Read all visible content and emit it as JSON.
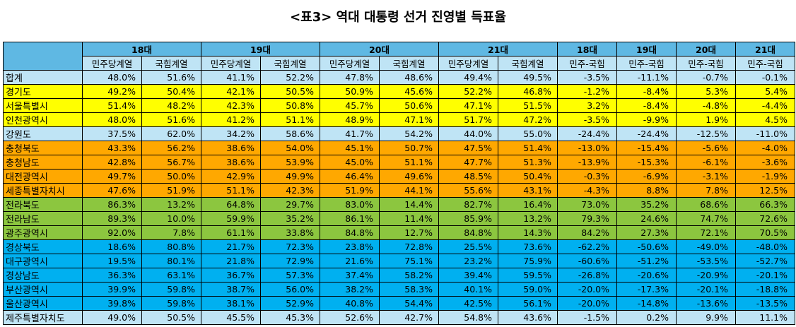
{
  "title": "<표3> 역대 대통령 선거 진영별 득표율",
  "colors": {
    "header": "#5fb8e3",
    "subheader": "#bfe4f5",
    "sudo": "#ffff00",
    "chungcheong": "#ffa800",
    "honam": "#8cc63f",
    "yeongnam": "#00b0f0",
    "other": "#bfe4f5"
  },
  "eras": [
    "18대",
    "19대",
    "20대",
    "21대"
  ],
  "diff_eras": [
    "18대",
    "19대",
    "20대",
    "21대"
  ],
  "sub_labels": [
    "민주당계열",
    "국힘계열"
  ],
  "diff_label": "민주-국힘",
  "rows": [
    {
      "group": "total",
      "name": "합계",
      "values": [
        "48.0%",
        "51.6%",
        "41.1%",
        "52.2%",
        "47.8%",
        "48.6%",
        "49.4%",
        "49.5%"
      ],
      "diffs": [
        "-3.5%",
        "-11.1%",
        "-0.7%",
        "-0.1%"
      ]
    },
    {
      "group": "sudo",
      "name": "경기도",
      "values": [
        "49.2%",
        "50.4%",
        "42.1%",
        "50.5%",
        "50.9%",
        "45.6%",
        "52.2%",
        "46.8%"
      ],
      "diffs": [
        "-1.2%",
        "-8.4%",
        "5.3%",
        "5.4%"
      ]
    },
    {
      "group": "sudo",
      "name": "서울특별시",
      "values": [
        "51.4%",
        "48.2%",
        "42.3%",
        "50.8%",
        "45.7%",
        "50.6%",
        "47.1%",
        "51.5%"
      ],
      "diffs": [
        "3.2%",
        "-8.4%",
        "-4.8%",
        "-4.4%"
      ]
    },
    {
      "group": "sudo",
      "name": "인천광역시",
      "values": [
        "48.0%",
        "51.6%",
        "41.2%",
        "51.1%",
        "48.9%",
        "47.1%",
        "51.7%",
        "47.2%"
      ],
      "diffs": [
        "-3.5%",
        "-9.9%",
        "1.9%",
        "4.5%"
      ]
    },
    {
      "group": "gw",
      "name": "강원도",
      "values": [
        "37.5%",
        "62.0%",
        "34.2%",
        "58.6%",
        "41.7%",
        "54.2%",
        "44.0%",
        "55.0%"
      ],
      "diffs": [
        "-24.4%",
        "-24.4%",
        "-12.5%",
        "-11.0%"
      ]
    },
    {
      "group": "cc",
      "name": "충청북도",
      "values": [
        "43.3%",
        "56.2%",
        "38.6%",
        "54.0%",
        "45.1%",
        "50.7%",
        "47.5%",
        "51.4%"
      ],
      "diffs": [
        "-13.0%",
        "-15.4%",
        "-5.6%",
        "-4.0%"
      ]
    },
    {
      "group": "cc",
      "name": "충청남도",
      "values": [
        "42.8%",
        "56.7%",
        "38.6%",
        "53.9%",
        "45.0%",
        "51.1%",
        "47.7%",
        "51.3%"
      ],
      "diffs": [
        "-13.9%",
        "-15.3%",
        "-6.1%",
        "-3.6%"
      ]
    },
    {
      "group": "cc",
      "name": "대전광역시",
      "values": [
        "49.7%",
        "50.0%",
        "42.9%",
        "49.9%",
        "46.4%",
        "49.6%",
        "48.5%",
        "50.4%"
      ],
      "diffs": [
        "-0.3%",
        "-6.9%",
        "-3.1%",
        "-1.9%"
      ]
    },
    {
      "group": "cc",
      "name": "세종특별자치시",
      "values": [
        "47.6%",
        "51.9%",
        "51.1%",
        "42.3%",
        "51.9%",
        "44.1%",
        "55.6%",
        "43.1%"
      ],
      "diffs": [
        "-4.3%",
        "8.8%",
        "7.8%",
        "12.5%"
      ]
    },
    {
      "group": "hn",
      "name": "전라북도",
      "values": [
        "86.3%",
        "13.2%",
        "64.8%",
        "29.7%",
        "83.0%",
        "14.4%",
        "82.7%",
        "16.4%"
      ],
      "diffs": [
        "73.0%",
        "35.2%",
        "68.6%",
        "66.3%"
      ]
    },
    {
      "group": "hn",
      "name": "전라남도",
      "values": [
        "89.3%",
        "10.0%",
        "59.9%",
        "35.2%",
        "86.1%",
        "11.4%",
        "85.9%",
        "13.2%"
      ],
      "diffs": [
        "79.3%",
        "24.6%",
        "74.7%",
        "72.6%"
      ]
    },
    {
      "group": "hn",
      "name": "광주광역시",
      "values": [
        "92.0%",
        "7.8%",
        "61.1%",
        "33.8%",
        "84.8%",
        "12.7%",
        "84.8%",
        "14.3%"
      ],
      "diffs": [
        "84.2%",
        "27.3%",
        "72.1%",
        "70.5%"
      ]
    },
    {
      "group": "ys",
      "name": "경상북도",
      "values": [
        "18.6%",
        "80.8%",
        "21.7%",
        "72.3%",
        "23.8%",
        "72.8%",
        "25.5%",
        "73.6%"
      ],
      "diffs": [
        "-62.2%",
        "-50.6%",
        "-49.0%",
        "-48.0%"
      ]
    },
    {
      "group": "ys",
      "name": "대구광역시",
      "values": [
        "19.5%",
        "80.1%",
        "21.8%",
        "72.9%",
        "21.6%",
        "75.1%",
        "23.2%",
        "75.9%"
      ],
      "diffs": [
        "-60.6%",
        "-51.2%",
        "-53.5%",
        "-52.7%"
      ]
    },
    {
      "group": "ys",
      "name": "경상남도",
      "values": [
        "36.3%",
        "63.1%",
        "36.7%",
        "57.3%",
        "37.4%",
        "58.2%",
        "39.4%",
        "59.5%"
      ],
      "diffs": [
        "-26.8%",
        "-20.6%",
        "-20.9%",
        "-20.1%"
      ]
    },
    {
      "group": "ys",
      "name": "부산광역시",
      "values": [
        "39.9%",
        "59.8%",
        "38.7%",
        "56.0%",
        "38.2%",
        "58.3%",
        "40.1%",
        "59.0%"
      ],
      "diffs": [
        "-20.0%",
        "-17.3%",
        "-20.1%",
        "-18.8%"
      ]
    },
    {
      "group": "ys",
      "name": "울산광역시",
      "values": [
        "39.8%",
        "59.8%",
        "38.1%",
        "52.9%",
        "40.8%",
        "54.4%",
        "42.5%",
        "56.1%"
      ],
      "diffs": [
        "-20.0%",
        "-14.8%",
        "-13.6%",
        "-13.5%"
      ]
    },
    {
      "group": "jj",
      "name": "제주특별자치도",
      "values": [
        "49.0%",
        "50.5%",
        "45.5%",
        "45.3%",
        "52.6%",
        "42.7%",
        "54.8%",
        "43.6%"
      ],
      "diffs": [
        "-1.5%",
        "0.2%",
        "9.9%",
        "11.1%"
      ]
    }
  ]
}
